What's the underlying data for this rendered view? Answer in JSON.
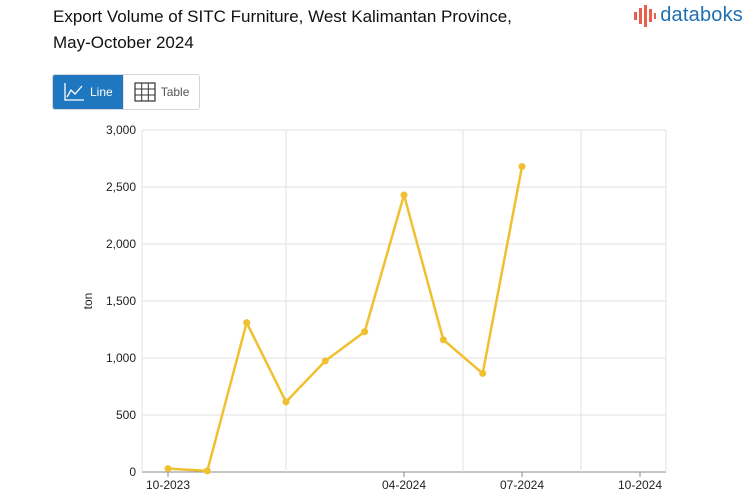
{
  "header": {
    "title_line1": "Export Volume of SITC Furniture, West Kalimantan Province,",
    "title_line2": "May-October 2024"
  },
  "logo": {
    "text": "databoks",
    "icon": "databoks-bars-icon",
    "color": "#1f6fb2"
  },
  "view_toggle": {
    "line_label": "Line",
    "table_label": "Table",
    "selected": "Line",
    "line_icon": "line-chart-icon",
    "table_icon": "table-grid-icon"
  },
  "chart_data": {
    "type": "line",
    "title": "Export Volume of SITC Furniture, West Kalimantan Province, May-October 2024",
    "xlabel": "",
    "ylabel": "ton",
    "ylim": [
      0,
      3000
    ],
    "yticks": [
      0,
      500,
      1000,
      1500,
      2000,
      2500,
      3000
    ],
    "ytick_labels": [
      "0",
      "500",
      "1,000",
      "1,500",
      "2,000",
      "2,500",
      "3,000"
    ],
    "x": [
      "10-2023",
      "11-2023",
      "12-2023",
      "01-2024",
      "02-2024",
      "03-2024",
      "04-2024",
      "05-2024",
      "06-2024",
      "07-2024",
      "08-2024",
      "09-2024",
      "10-2024"
    ],
    "xtick_labels": [
      "10-2023",
      "04-2024",
      "07-2024",
      "10-2024"
    ],
    "xlim": [
      "10-2023",
      "10-2024"
    ],
    "series": [
      {
        "color": "#f0c030",
        "points": [
          {
            "x": "10-2023",
            "y": 30
          },
          {
            "x": "11-2023",
            "y": 10
          },
          {
            "x": "12-2023",
            "y": 1310
          },
          {
            "x": "01-2024",
            "y": 615
          },
          {
            "x": "02-2024",
            "y": 975
          },
          {
            "x": "03-2024",
            "y": 1230
          },
          {
            "x": "04-2024",
            "y": 2430
          },
          {
            "x": "05-2024",
            "y": 1160
          },
          {
            "x": "06-2024",
            "y": 865
          },
          {
            "x": "07-2024",
            "y": 2680
          }
        ]
      }
    ],
    "grid": true,
    "legend": "none"
  }
}
